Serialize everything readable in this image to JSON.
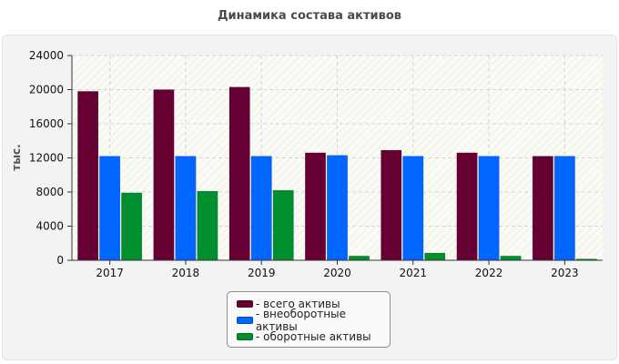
{
  "chart_data": {
    "type": "bar",
    "title": "Динамика состава активов",
    "ylabel": "тыс.",
    "xlabel": "",
    "ylim": [
      0,
      24000
    ],
    "yticks": [
      0,
      4000,
      8000,
      12000,
      16000,
      20000,
      24000
    ],
    "categories": [
      "2017",
      "2018",
      "2019",
      "2020",
      "2021",
      "2022",
      "2023"
    ],
    "series": [
      {
        "name": "- всего активы",
        "color": "#660033",
        "values": [
          19800,
          20000,
          20300,
          12600,
          12900,
          12600,
          12200
        ]
      },
      {
        "name": "- внеоборотные активы",
        "color": "#0066ff",
        "values": [
          12200,
          12200,
          12200,
          12300,
          12200,
          12200,
          12200
        ]
      },
      {
        "name": "- оборотные активы",
        "color": "#008f2e",
        "values": [
          7900,
          8100,
          8200,
          500,
          850,
          500,
          150
        ]
      }
    ],
    "grid": true,
    "legend_position": "bottom"
  }
}
